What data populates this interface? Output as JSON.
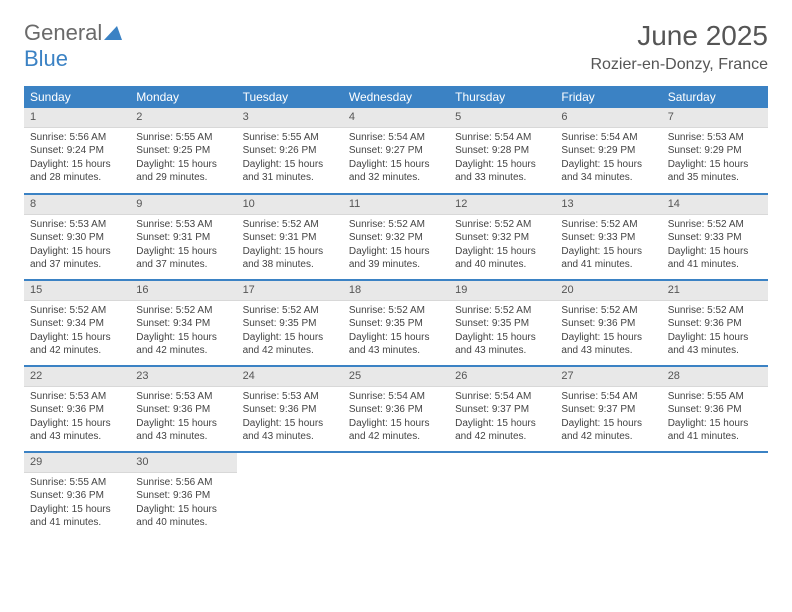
{
  "logo": {
    "text1": "General",
    "text2": "Blue"
  },
  "title": "June 2025",
  "location": "Rozier-en-Donzy, France",
  "colors": {
    "header_bg": "#3b82c4",
    "header_text": "#ffffff",
    "daynum_bg": "#e8e8e8",
    "row_divider": "#3b82c4",
    "body_text": "#444444",
    "title_text": "#555555"
  },
  "weekdays": [
    "Sunday",
    "Monday",
    "Tuesday",
    "Wednesday",
    "Thursday",
    "Friday",
    "Saturday"
  ],
  "days": [
    {
      "n": "1",
      "sr": "Sunrise: 5:56 AM",
      "ss": "Sunset: 9:24 PM",
      "d1": "Daylight: 15 hours",
      "d2": "and 28 minutes."
    },
    {
      "n": "2",
      "sr": "Sunrise: 5:55 AM",
      "ss": "Sunset: 9:25 PM",
      "d1": "Daylight: 15 hours",
      "d2": "and 29 minutes."
    },
    {
      "n": "3",
      "sr": "Sunrise: 5:55 AM",
      "ss": "Sunset: 9:26 PM",
      "d1": "Daylight: 15 hours",
      "d2": "and 31 minutes."
    },
    {
      "n": "4",
      "sr": "Sunrise: 5:54 AM",
      "ss": "Sunset: 9:27 PM",
      "d1": "Daylight: 15 hours",
      "d2": "and 32 minutes."
    },
    {
      "n": "5",
      "sr": "Sunrise: 5:54 AM",
      "ss": "Sunset: 9:28 PM",
      "d1": "Daylight: 15 hours",
      "d2": "and 33 minutes."
    },
    {
      "n": "6",
      "sr": "Sunrise: 5:54 AM",
      "ss": "Sunset: 9:29 PM",
      "d1": "Daylight: 15 hours",
      "d2": "and 34 minutes."
    },
    {
      "n": "7",
      "sr": "Sunrise: 5:53 AM",
      "ss": "Sunset: 9:29 PM",
      "d1": "Daylight: 15 hours",
      "d2": "and 35 minutes."
    },
    {
      "n": "8",
      "sr": "Sunrise: 5:53 AM",
      "ss": "Sunset: 9:30 PM",
      "d1": "Daylight: 15 hours",
      "d2": "and 37 minutes."
    },
    {
      "n": "9",
      "sr": "Sunrise: 5:53 AM",
      "ss": "Sunset: 9:31 PM",
      "d1": "Daylight: 15 hours",
      "d2": "and 37 minutes."
    },
    {
      "n": "10",
      "sr": "Sunrise: 5:52 AM",
      "ss": "Sunset: 9:31 PM",
      "d1": "Daylight: 15 hours",
      "d2": "and 38 minutes."
    },
    {
      "n": "11",
      "sr": "Sunrise: 5:52 AM",
      "ss": "Sunset: 9:32 PM",
      "d1": "Daylight: 15 hours",
      "d2": "and 39 minutes."
    },
    {
      "n": "12",
      "sr": "Sunrise: 5:52 AM",
      "ss": "Sunset: 9:32 PM",
      "d1": "Daylight: 15 hours",
      "d2": "and 40 minutes."
    },
    {
      "n": "13",
      "sr": "Sunrise: 5:52 AM",
      "ss": "Sunset: 9:33 PM",
      "d1": "Daylight: 15 hours",
      "d2": "and 41 minutes."
    },
    {
      "n": "14",
      "sr": "Sunrise: 5:52 AM",
      "ss": "Sunset: 9:33 PM",
      "d1": "Daylight: 15 hours",
      "d2": "and 41 minutes."
    },
    {
      "n": "15",
      "sr": "Sunrise: 5:52 AM",
      "ss": "Sunset: 9:34 PM",
      "d1": "Daylight: 15 hours",
      "d2": "and 42 minutes."
    },
    {
      "n": "16",
      "sr": "Sunrise: 5:52 AM",
      "ss": "Sunset: 9:34 PM",
      "d1": "Daylight: 15 hours",
      "d2": "and 42 minutes."
    },
    {
      "n": "17",
      "sr": "Sunrise: 5:52 AM",
      "ss": "Sunset: 9:35 PM",
      "d1": "Daylight: 15 hours",
      "d2": "and 42 minutes."
    },
    {
      "n": "18",
      "sr": "Sunrise: 5:52 AM",
      "ss": "Sunset: 9:35 PM",
      "d1": "Daylight: 15 hours",
      "d2": "and 43 minutes."
    },
    {
      "n": "19",
      "sr": "Sunrise: 5:52 AM",
      "ss": "Sunset: 9:35 PM",
      "d1": "Daylight: 15 hours",
      "d2": "and 43 minutes."
    },
    {
      "n": "20",
      "sr": "Sunrise: 5:52 AM",
      "ss": "Sunset: 9:36 PM",
      "d1": "Daylight: 15 hours",
      "d2": "and 43 minutes."
    },
    {
      "n": "21",
      "sr": "Sunrise: 5:52 AM",
      "ss": "Sunset: 9:36 PM",
      "d1": "Daylight: 15 hours",
      "d2": "and 43 minutes."
    },
    {
      "n": "22",
      "sr": "Sunrise: 5:53 AM",
      "ss": "Sunset: 9:36 PM",
      "d1": "Daylight: 15 hours",
      "d2": "and 43 minutes."
    },
    {
      "n": "23",
      "sr": "Sunrise: 5:53 AM",
      "ss": "Sunset: 9:36 PM",
      "d1": "Daylight: 15 hours",
      "d2": "and 43 minutes."
    },
    {
      "n": "24",
      "sr": "Sunrise: 5:53 AM",
      "ss": "Sunset: 9:36 PM",
      "d1": "Daylight: 15 hours",
      "d2": "and 43 minutes."
    },
    {
      "n": "25",
      "sr": "Sunrise: 5:54 AM",
      "ss": "Sunset: 9:36 PM",
      "d1": "Daylight: 15 hours",
      "d2": "and 42 minutes."
    },
    {
      "n": "26",
      "sr": "Sunrise: 5:54 AM",
      "ss": "Sunset: 9:37 PM",
      "d1": "Daylight: 15 hours",
      "d2": "and 42 minutes."
    },
    {
      "n": "27",
      "sr": "Sunrise: 5:54 AM",
      "ss": "Sunset: 9:37 PM",
      "d1": "Daylight: 15 hours",
      "d2": "and 42 minutes."
    },
    {
      "n": "28",
      "sr": "Sunrise: 5:55 AM",
      "ss": "Sunset: 9:36 PM",
      "d1": "Daylight: 15 hours",
      "d2": "and 41 minutes."
    },
    {
      "n": "29",
      "sr": "Sunrise: 5:55 AM",
      "ss": "Sunset: 9:36 PM",
      "d1": "Daylight: 15 hours",
      "d2": "and 41 minutes."
    },
    {
      "n": "30",
      "sr": "Sunrise: 5:56 AM",
      "ss": "Sunset: 9:36 PM",
      "d1": "Daylight: 15 hours",
      "d2": "and 40 minutes."
    }
  ]
}
